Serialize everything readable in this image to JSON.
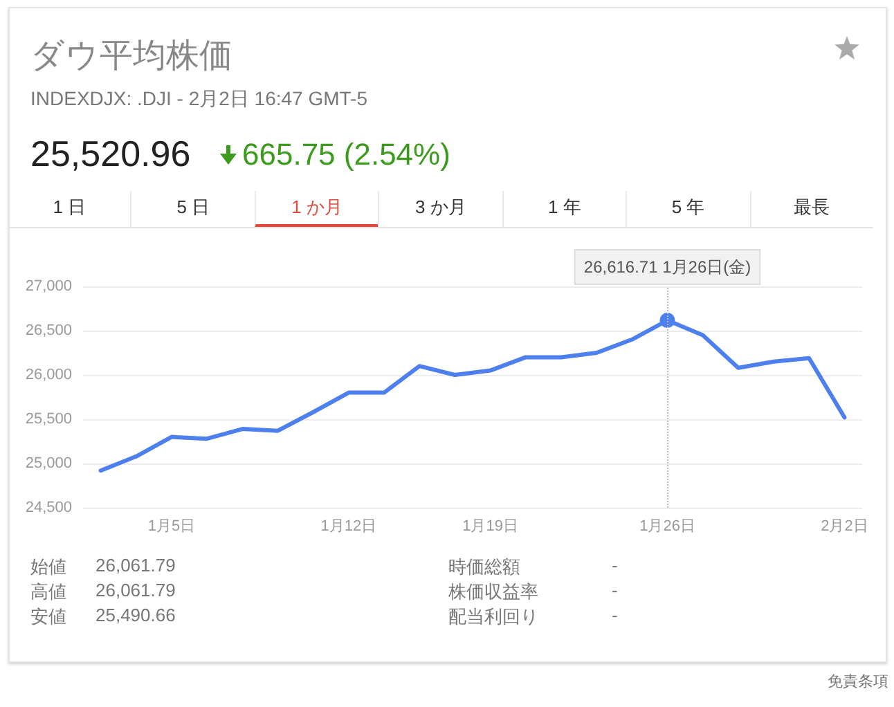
{
  "chart_data": {
    "type": "line",
    "title": "ダウ平均株価",
    "subtitle": "INDEXDJX: .DJI - 2月2日 16:47 GMT-5",
    "categories": [
      null,
      null,
      "1月5日",
      null,
      null,
      null,
      null,
      "1月12日",
      null,
      null,
      null,
      "1月19日",
      null,
      null,
      null,
      null,
      "1月26日",
      null,
      null,
      null,
      null,
      "2月2日"
    ],
    "series": [
      {
        "color": "#4d80ee",
        "values": [
          24920,
          25080,
          25300,
          25280,
          25390,
          25370,
          25580,
          25800,
          25800,
          26100,
          26000,
          26050,
          26200,
          26200,
          26250,
          26400,
          26616.71,
          26450,
          26080,
          26150,
          26190,
          25520.96
        ]
      }
    ],
    "ylim": [
      24500,
      27000
    ],
    "yticks": [
      {
        "value": 24500,
        "label": "24,500"
      },
      {
        "value": 25000,
        "label": "25,000"
      },
      {
        "value": 25500,
        "label": "25,500"
      },
      {
        "value": 26000,
        "label": "26,000"
      },
      {
        "value": 26500,
        "label": "26,500"
      },
      {
        "value": 27000,
        "label": "27,000"
      }
    ],
    "grid": "y",
    "marker": "none",
    "line_style": "solid",
    "ref_lines": [
      {
        "axis": "x",
        "value": "1月26日",
        "label": "26,616.71 1月26日(金)",
        "color": "#bbbbbb",
        "line_style": "dotted"
      }
    ],
    "annotations": [
      "25,520.96",
      "665.75 (2.54%)",
      "1 日",
      "5 日",
      "1 か月",
      "3 か月",
      "1 年",
      "5 年",
      "最長",
      "始値",
      "26,061.79",
      "高値",
      "26,061.79",
      "安値",
      "25,490.66",
      "時価総額",
      "-",
      "株価収益率",
      "-",
      "配当利回り",
      "-",
      "免責条項"
    ]
  }
}
